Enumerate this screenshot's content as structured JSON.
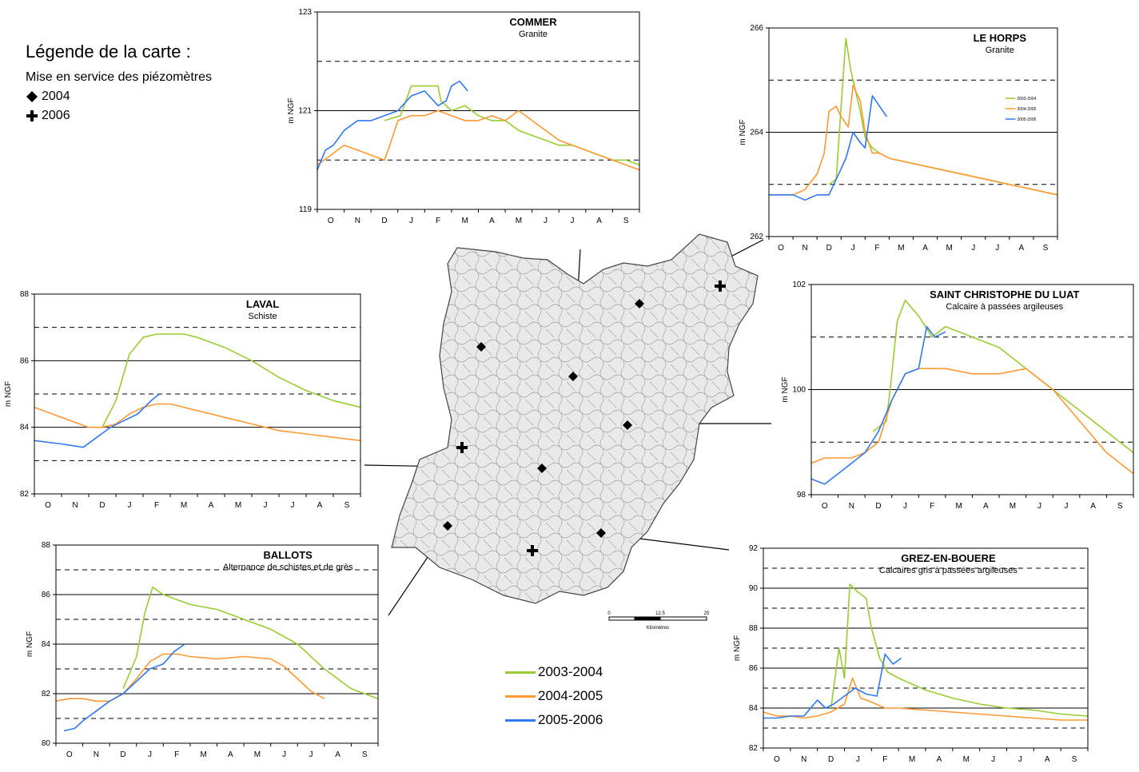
{
  "legend": {
    "title": "Légende de la carte :",
    "subtitle": "Mise en service des piézomètres",
    "items": [
      {
        "symbol": "diamond",
        "label": "2004"
      },
      {
        "symbol": "plus",
        "label": "2006"
      }
    ]
  },
  "series_legend": [
    {
      "label": "2003-2004",
      "color": "#99cc33"
    },
    {
      "label": "2004-2005",
      "color": "#ff9933"
    },
    {
      "label": "2005-2006",
      "color": "#3377ee"
    }
  ],
  "scale": {
    "ticks": [
      "0",
      "12.5",
      "25"
    ],
    "unit": "Kilomètres"
  },
  "chart_data": [
    {
      "id": "commer",
      "type": "line",
      "title": "COMMER",
      "subtitle": "Granite",
      "ylabel": "m NGF",
      "ylim": [
        119,
        123
      ],
      "yticks": [
        "119",
        "121",
        "123"
      ],
      "solid_lines": [
        121
      ],
      "dashed_lines": [
        120,
        122
      ],
      "categories": [
        "O",
        "N",
        "D",
        "J",
        "F",
        "M",
        "A",
        "M",
        "J",
        "J",
        "A",
        "S"
      ],
      "series": [
        {
          "color": "#99cc33",
          "x": [
            2.5,
            3.1,
            3.3,
            3.5,
            4.0,
            4.5,
            4.6,
            5.0,
            5.5,
            6.0,
            6.5,
            7.0,
            7.5,
            8.0,
            8.5,
            9.0,
            9.5,
            10.0,
            10.5,
            11.0,
            11.5,
            12.0
          ],
          "y": [
            120.8,
            120.9,
            121.2,
            121.5,
            121.5,
            121.5,
            121.2,
            121.0,
            121.1,
            120.9,
            120.8,
            120.8,
            120.6,
            120.5,
            120.4,
            120.3,
            120.3,
            120.2,
            120.1,
            120.0,
            120.0,
            119.9
          ]
        },
        {
          "color": "#ff9933",
          "x": [
            0.0,
            0.5,
            1.0,
            1.5,
            2.0,
            2.5,
            2.7,
            3.0,
            3.5,
            4.0,
            4.5,
            5.0,
            5.5,
            6.0,
            6.5,
            7.0,
            7.5,
            8.0,
            8.5,
            9.0,
            9.5,
            10.0,
            10.5,
            11.0,
            11.5,
            12.0
          ],
          "y": [
            119.9,
            120.1,
            120.3,
            120.2,
            120.1,
            120.0,
            120.3,
            120.8,
            120.9,
            120.9,
            121.0,
            120.9,
            120.8,
            120.8,
            120.9,
            120.8,
            121.0,
            120.8,
            120.6,
            120.4,
            120.3,
            120.2,
            120.1,
            120.0,
            119.9,
            119.8
          ]
        },
        {
          "color": "#3377ee",
          "x": [
            0.0,
            0.3,
            0.6,
            1.0,
            1.5,
            2.0,
            2.5,
            3.0,
            3.5,
            4.0,
            4.5,
            4.8,
            5.0,
            5.3,
            5.6
          ],
          "y": [
            119.8,
            120.2,
            120.3,
            120.6,
            120.8,
            120.8,
            120.9,
            121.0,
            121.3,
            121.4,
            121.1,
            121.2,
            121.5,
            121.6,
            121.4
          ]
        }
      ]
    },
    {
      "id": "lehorps",
      "type": "line",
      "title": "LE HORPS",
      "subtitle": "Granite",
      "ylabel": "m NGF",
      "ylim": [
        262,
        266
      ],
      "yticks": [
        "262",
        "264",
        "266"
      ],
      "solid_lines": [
        264
      ],
      "dashed_lines": [
        263,
        265
      ],
      "categories": [
        "O",
        "N",
        "D",
        "J",
        "F",
        "M",
        "A",
        "M",
        "J",
        "J",
        "A",
        "S"
      ],
      "mini_legend": [
        "2003-2004",
        "2004-2005",
        "2005-2006"
      ],
      "series": [
        {
          "color": "#99cc33",
          "x": [
            2.5,
            2.8,
            3.0,
            3.2,
            3.4,
            3.6,
            3.8,
            4.0,
            4.3,
            4.6,
            5.0,
            6.0,
            7.0,
            8.0,
            9.0,
            10.0,
            11.0,
            12.0
          ],
          "y": [
            263.0,
            263.1,
            264.5,
            265.8,
            265.2,
            264.8,
            264.4,
            263.9,
            263.7,
            263.6,
            263.5,
            263.4,
            263.3,
            263.2,
            263.1,
            263.0,
            262.9,
            262.8
          ]
        },
        {
          "color": "#ff9933",
          "x": [
            0.0,
            0.5,
            1.0,
            1.5,
            2.0,
            2.3,
            2.5,
            2.8,
            3.0,
            3.3,
            3.5,
            3.8,
            4.0,
            4.3,
            4.6,
            5.0,
            6.0,
            7.0,
            8.0,
            9.0,
            10.0,
            11.0,
            12.0
          ],
          "y": [
            262.8,
            262.8,
            262.8,
            262.9,
            263.2,
            263.6,
            264.4,
            264.5,
            264.3,
            264.1,
            264.9,
            264.6,
            264.0,
            263.6,
            263.6,
            263.5,
            263.4,
            263.3,
            263.2,
            263.1,
            263.0,
            262.9,
            262.8
          ]
        },
        {
          "color": "#3377ee",
          "x": [
            0.0,
            0.5,
            1.0,
            1.5,
            2.0,
            2.5,
            3.2,
            3.5,
            3.8,
            4.0,
            4.3,
            4.6,
            4.9
          ],
          "y": [
            262.8,
            262.8,
            262.8,
            262.7,
            262.8,
            262.8,
            263.5,
            264.0,
            263.8,
            263.7,
            264.7,
            264.5,
            264.3
          ]
        }
      ]
    },
    {
      "id": "laval",
      "type": "line",
      "title": "LAVAL",
      "subtitle": "Schiste",
      "ylabel": "m NGF",
      "ylim": [
        82,
        88
      ],
      "yticks": [
        "82",
        "84",
        "86",
        "88"
      ],
      "solid_lines": [
        84,
        86
      ],
      "dashed_lines": [
        83,
        85,
        87
      ],
      "categories": [
        "O",
        "N",
        "D",
        "J",
        "F",
        "M",
        "A",
        "M",
        "J",
        "J",
        "A",
        "S"
      ],
      "series": [
        {
          "color": "#99cc33",
          "x": [
            2.5,
            3.0,
            3.5,
            4.0,
            4.5,
            5.0,
            5.5,
            6.0,
            7.0,
            8.0,
            9.0,
            10.0,
            11.0,
            12.0
          ],
          "y": [
            84.0,
            84.8,
            86.2,
            86.7,
            86.8,
            86.8,
            86.8,
            86.7,
            86.4,
            86.0,
            85.5,
            85.1,
            84.8,
            84.6
          ]
        },
        {
          "color": "#ff9933",
          "x": [
            0.0,
            1.0,
            2.0,
            2.5,
            3.0,
            3.5,
            4.0,
            4.5,
            5.0,
            6.0,
            7.0,
            8.0,
            9.0,
            10.0,
            11.0,
            12.0
          ],
          "y": [
            84.6,
            84.3,
            84.0,
            84.0,
            84.1,
            84.4,
            84.6,
            84.7,
            84.7,
            84.5,
            84.3,
            84.1,
            83.9,
            83.8,
            83.7,
            83.6
          ]
        },
        {
          "color": "#3377ee",
          "x": [
            0.0,
            1.0,
            1.8,
            2.3,
            2.8,
            3.3,
            3.8,
            4.3,
            4.6
          ],
          "y": [
            83.6,
            83.5,
            83.4,
            83.7,
            84.0,
            84.2,
            84.4,
            84.8,
            85.0
          ]
        }
      ]
    },
    {
      "id": "saintchristophe",
      "type": "line",
      "title": "SAINT CHRISTOPHE DU LUAT",
      "subtitle": "Calcaire à passées argileuses",
      "ylabel": "m NGF",
      "ylim": [
        98,
        102
      ],
      "yticks": [
        "98",
        "100",
        "102"
      ],
      "solid_lines": [
        100
      ],
      "dashed_lines": [
        99,
        101
      ],
      "categories": [
        "O",
        "N",
        "D",
        "J",
        "F",
        "M",
        "A",
        "M",
        "J",
        "J",
        "A",
        "S"
      ],
      "series": [
        {
          "color": "#99cc33",
          "x": [
            2.3,
            2.8,
            3.0,
            3.2,
            3.5,
            4.0,
            4.5,
            5.0,
            6.0,
            7.0,
            8.0,
            9.0,
            10.0,
            11.0,
            12.0
          ],
          "y": [
            99.2,
            99.4,
            100.3,
            101.3,
            101.7,
            101.4,
            101.0,
            101.2,
            101.0,
            100.8,
            100.4,
            100.0,
            99.6,
            99.2,
            98.8
          ]
        },
        {
          "color": "#ff9933",
          "x": [
            0.0,
            0.5,
            1.0,
            1.5,
            2.0,
            2.5,
            3.0,
            3.5,
            4.0,
            5.0,
            6.0,
            7.0,
            8.0,
            9.0,
            10.0,
            11.0,
            12.0
          ],
          "y": [
            98.6,
            98.7,
            98.7,
            98.7,
            98.8,
            99.0,
            99.8,
            100.3,
            100.4,
            100.4,
            100.3,
            100.3,
            100.4,
            100.0,
            99.4,
            98.8,
            98.4
          ]
        },
        {
          "color": "#3377ee",
          "x": [
            0.0,
            0.5,
            1.0,
            1.5,
            2.0,
            2.5,
            3.0,
            3.5,
            4.0,
            4.3,
            4.6,
            5.0
          ],
          "y": [
            98.3,
            98.2,
            98.4,
            98.6,
            98.8,
            99.2,
            99.8,
            100.3,
            100.4,
            101.2,
            101.0,
            101.1
          ]
        }
      ]
    },
    {
      "id": "ballots",
      "type": "line",
      "title": "BALLOTS",
      "subtitle": "Alternance de schistes et de grès",
      "ylabel": "m NGF",
      "ylim": [
        80,
        88
      ],
      "yticks": [
        "80",
        "82",
        "84",
        "86",
        "88"
      ],
      "solid_lines": [
        82,
        84,
        86
      ],
      "dashed_lines": [
        81,
        83,
        85,
        87
      ],
      "categories": [
        "O",
        "N",
        "D",
        "J",
        "F",
        "M",
        "A",
        "M",
        "J",
        "J",
        "A",
        "S"
      ],
      "series": [
        {
          "color": "#99cc33",
          "x": [
            2.5,
            3.0,
            3.3,
            3.6,
            4.0,
            4.5,
            5.0,
            6.0,
            7.0,
            8.0,
            9.0,
            10.0,
            11.0,
            12.0
          ],
          "y": [
            82.2,
            83.5,
            85.2,
            86.3,
            86.0,
            85.8,
            85.6,
            85.4,
            85.0,
            84.6,
            84.0,
            83.0,
            82.2,
            81.8
          ]
        },
        {
          "color": "#ff9933",
          "x": [
            0.0,
            0.5,
            1.0,
            1.5,
            2.0,
            2.5,
            3.0,
            3.5,
            4.0,
            4.5,
            5.0,
            6.0,
            7.0,
            8.0,
            8.5,
            9.0,
            9.5,
            10.0
          ],
          "y": [
            81.7,
            81.8,
            81.8,
            81.7,
            81.7,
            82.0,
            82.6,
            83.3,
            83.6,
            83.6,
            83.5,
            83.4,
            83.5,
            83.4,
            83.1,
            82.6,
            82.1,
            81.8
          ]
        },
        {
          "color": "#3377ee",
          "x": [
            0.3,
            0.7,
            1.0,
            1.5,
            2.0,
            2.5,
            3.0,
            3.5,
            4.0,
            4.4,
            4.8
          ],
          "y": [
            80.5,
            80.6,
            80.9,
            81.3,
            81.7,
            82.0,
            82.5,
            83.0,
            83.2,
            83.7,
            84.0
          ]
        }
      ]
    },
    {
      "id": "grez",
      "type": "line",
      "title": "GREZ-EN-BOUERE",
      "subtitle": "Calcaires gris à passées argileuses",
      "ylabel": "m NGF",
      "ylim": [
        82,
        92
      ],
      "yticks": [
        "82",
        "84",
        "86",
        "88",
        "90",
        "92"
      ],
      "solid_lines": [
        84,
        86,
        88,
        90
      ],
      "dashed_lines": [
        83,
        85,
        87,
        89,
        91
      ],
      "categories": [
        "O",
        "N",
        "D",
        "J",
        "F",
        "M",
        "A",
        "M",
        "J",
        "J",
        "A",
        "S"
      ],
      "series": [
        {
          "color": "#99cc33",
          "x": [
            2.5,
            2.8,
            3.0,
            3.2,
            3.5,
            3.8,
            4.0,
            4.3,
            4.6,
            5.0,
            6.0,
            7.0,
            8.0,
            9.0,
            10.0,
            11.0,
            12.0
          ],
          "y": [
            84.0,
            87.0,
            85.5,
            90.2,
            89.8,
            89.5,
            88.0,
            86.5,
            85.8,
            85.5,
            84.9,
            84.5,
            84.2,
            84.0,
            83.9,
            83.7,
            83.6
          ]
        },
        {
          "color": "#ff9933",
          "x": [
            0.0,
            0.5,
            1.0,
            1.5,
            2.0,
            2.5,
            3.0,
            3.3,
            3.6,
            4.0,
            4.5,
            5.0,
            6.0,
            7.0,
            8.0,
            9.0,
            10.0,
            11.0,
            12.0
          ],
          "y": [
            83.8,
            83.6,
            83.6,
            83.5,
            83.6,
            83.8,
            84.2,
            85.5,
            84.5,
            84.3,
            84.0,
            84.0,
            83.9,
            83.8,
            83.7,
            83.6,
            83.5,
            83.4,
            83.4
          ]
        },
        {
          "color": "#3377ee",
          "x": [
            0.0,
            0.5,
            1.0,
            1.5,
            2.0,
            2.3,
            2.6,
            3.0,
            3.4,
            3.8,
            4.2,
            4.5,
            4.8,
            5.1
          ],
          "y": [
            83.5,
            83.5,
            83.6,
            83.6,
            84.4,
            84.0,
            84.2,
            84.6,
            85.0,
            84.7,
            84.6,
            86.7,
            86.2,
            86.5
          ]
        }
      ]
    }
  ]
}
